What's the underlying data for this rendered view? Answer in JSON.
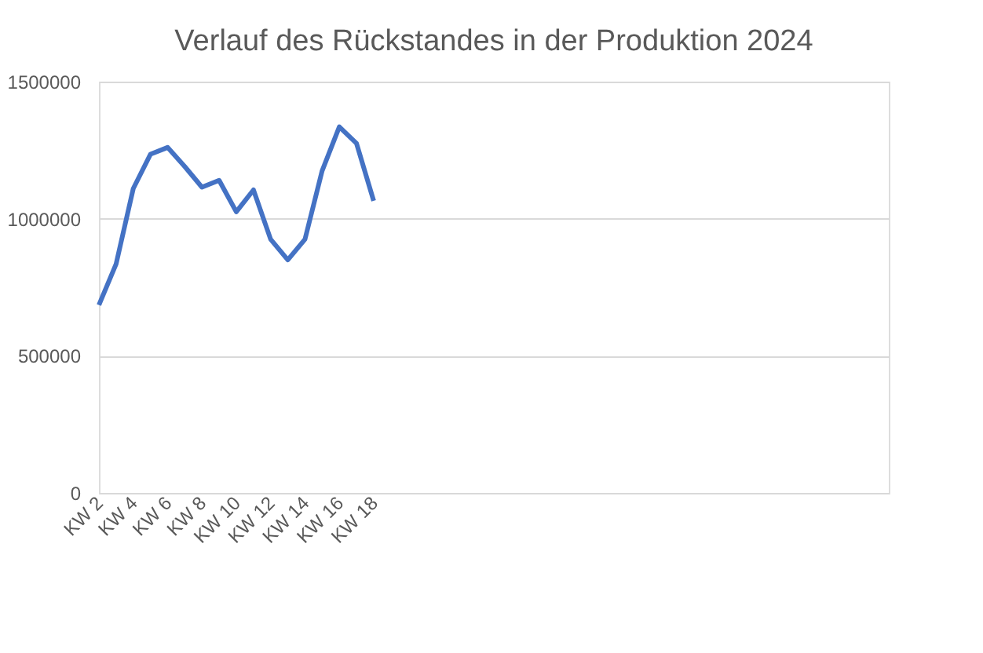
{
  "chart_data": {
    "type": "line",
    "title": "Verlauf des Rückstandes in der Produktion 2024",
    "categories": [
      "KW 2",
      null,
      "KW 4",
      null,
      "KW 6",
      null,
      "KW 8",
      null,
      "KW 10",
      null,
      "KW 12",
      null,
      "KW 14",
      null,
      "KW 16",
      null,
      "KW 18",
      null,
      null,
      null,
      null,
      null,
      null,
      null,
      null,
      null,
      null,
      null,
      null,
      null,
      null,
      null,
      null,
      null,
      null,
      null,
      null,
      null,
      null,
      null,
      null,
      null,
      null,
      null,
      null,
      null,
      null
    ],
    "series": [
      {
        "color": "#4472c4",
        "values": [
          685000,
          835000,
          1110000,
          1235000,
          1260000,
          1190000,
          1115000,
          1140000,
          1025000,
          1105000,
          925000,
          850000,
          925000,
          1175000,
          1335000,
          1275000,
          1065000,
          null,
          null,
          null,
          null,
          null,
          null,
          null,
          null,
          null,
          null,
          null,
          null,
          null,
          null,
          null,
          null,
          null,
          null,
          null,
          null,
          null,
          null,
          null,
          null,
          null,
          null,
          null,
          null,
          null,
          null
        ]
      }
    ],
    "ylim": [
      0,
      1500000
    ],
    "yticks": [
      0,
      500000,
      1000000,
      1500000
    ],
    "grid": "y",
    "marker": "none",
    "line_style": "solid"
  }
}
